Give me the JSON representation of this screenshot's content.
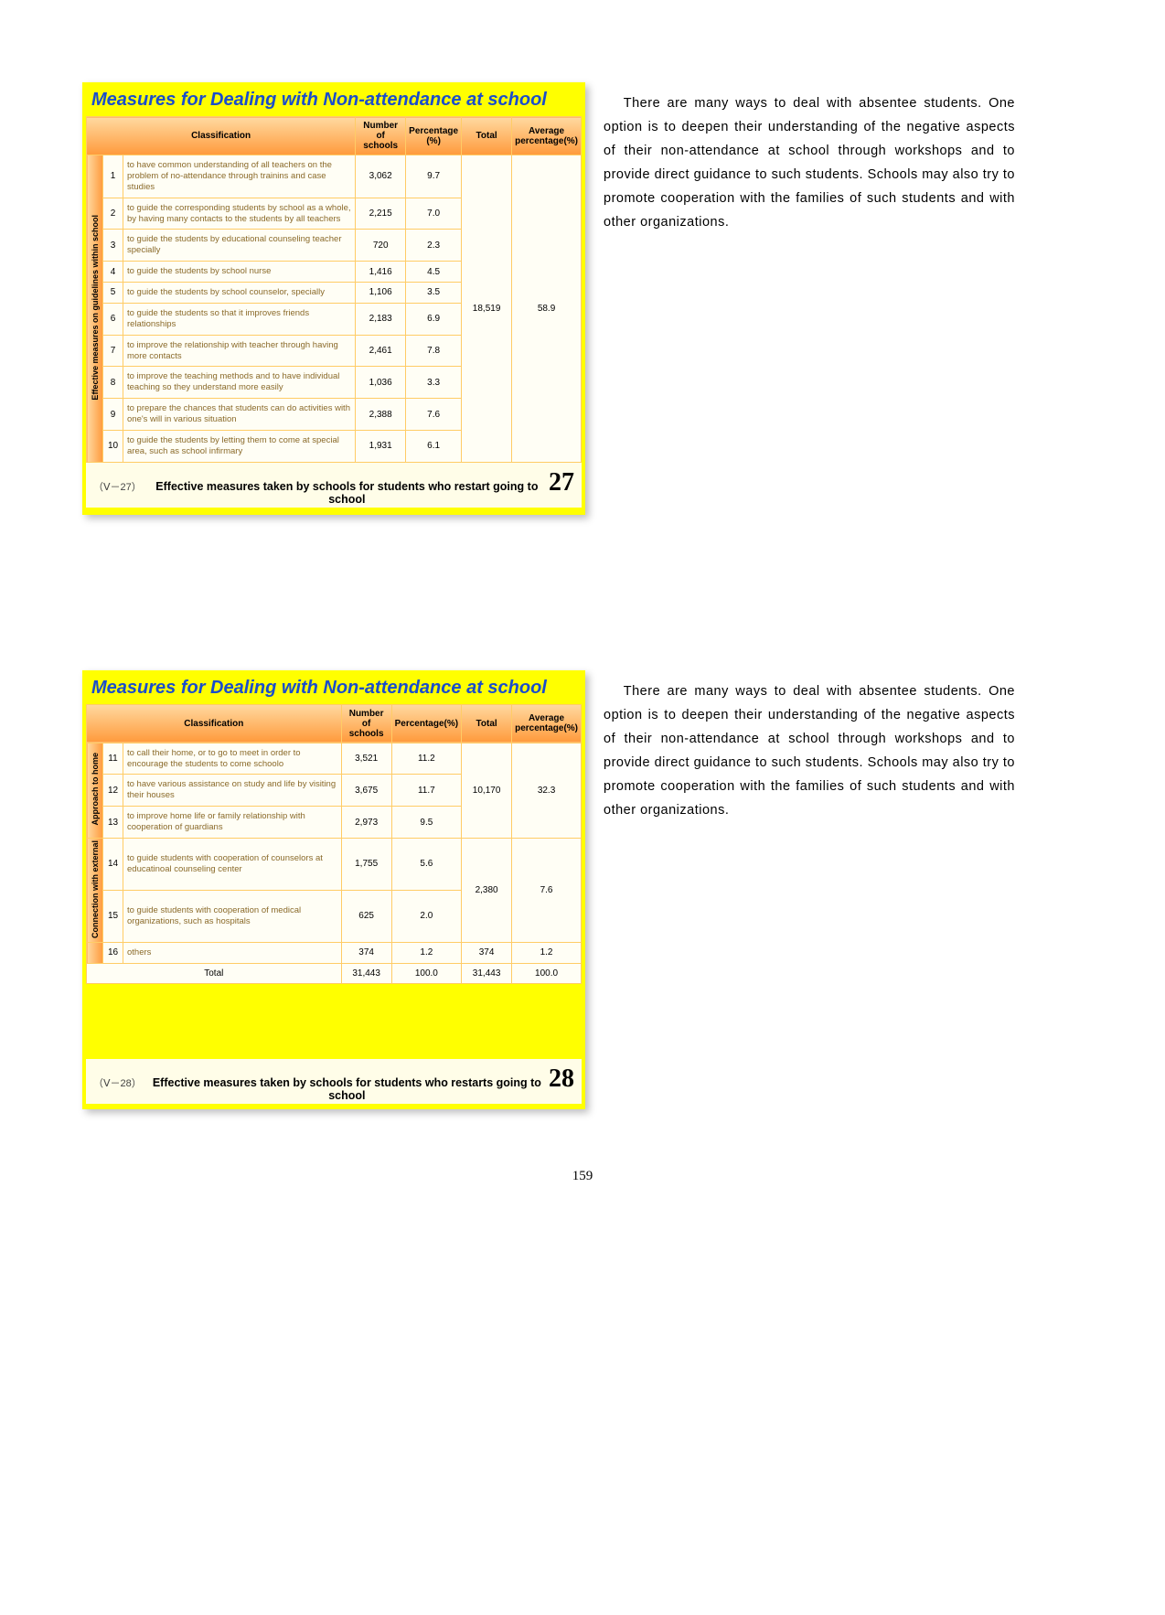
{
  "page_number": "159",
  "card1": {
    "title": "Measures for Dealing with Non-attendance at school",
    "headers": {
      "classification": "Classification",
      "num_schools": "Number of schools",
      "percentage": "Percentage (%)",
      "total": "Total",
      "avg_pct": "Average percentage(%)"
    },
    "group_label": "Effective measures on guidelines within school",
    "rows": [
      {
        "n": "1",
        "desc": "to have common understanding of all teachers on the problem of no-attendance through trainins and case studies",
        "schools": "3,062",
        "pct": "9.7"
      },
      {
        "n": "2",
        "desc": "to guide the corresponding students by school as a whole, by having many contacts to the students by all teachers",
        "schools": "2,215",
        "pct": "7.0"
      },
      {
        "n": "3",
        "desc": "to guide the students by educational counseling teacher specially",
        "schools": "720",
        "pct": "2.3"
      },
      {
        "n": "4",
        "desc": "to guide the students by school nurse",
        "schools": "1,416",
        "pct": "4.5"
      },
      {
        "n": "5",
        "desc": "to guide the students by school counselor, specially",
        "schools": "1,106",
        "pct": "3.5"
      },
      {
        "n": "6",
        "desc": "to guide the students so that it improves friends relationships",
        "schools": "2,183",
        "pct": "6.9"
      },
      {
        "n": "7",
        "desc": "to improve the relationship with teacher through having more contacts",
        "schools": "2,461",
        "pct": "7.8"
      },
      {
        "n": "8",
        "desc": "to improve the teaching methods and to have individual teaching so they understand more easily",
        "schools": "1,036",
        "pct": "3.3"
      },
      {
        "n": "9",
        "desc": "to prepare the chances that students can do activities with one's will in various situation",
        "schools": "2,388",
        "pct": "7.6"
      },
      {
        "n": "10",
        "desc": "to guide the students by letting them to come at special area, such as school infirmary",
        "schools": "1,931",
        "pct": "6.1"
      }
    ],
    "group_total": "18,519",
    "group_avg": "58.9",
    "footer_code": "（Ⅴ－27）",
    "footer_text": "Effective measures taken by schools for students who restart going to school",
    "footer_num": "27"
  },
  "side1": "There are many ways to deal with absentee students.  One option is to deepen their understanding of the negative aspects of their non-attendance at school through workshops and to provide direct guidance to such students. Schools may also try to promote cooperation with the  families of such students and with  other organizations.",
  "card2": {
    "title": "Measures for Dealing with Non-attendance at school",
    "headers": {
      "classification": "Classification",
      "num_schools": "Number of schools",
      "percentage": "Percentage(%)",
      "total": "Total",
      "avg_pct": "Average percentage(%)"
    },
    "groupA_label": "Approach to home",
    "groupA_rows": [
      {
        "n": "11",
        "desc": "to call their home, or to go to meet in order to encourage the students to come schoolo",
        "schools": "3,521",
        "pct": "11.2"
      },
      {
        "n": "12",
        "desc": "to have various assistance on study and life by visiting their houses",
        "schools": "3,675",
        "pct": "11.7"
      },
      {
        "n": "13",
        "desc": "to improve home life or family relationship with cooperation of guardians",
        "schools": "2,973",
        "pct": "9.5"
      }
    ],
    "groupA_total": "10,170",
    "groupA_avg": "32.3",
    "groupB_label": "Connection with external",
    "groupB_rows": [
      {
        "n": "14",
        "desc": "to guide students with cooperation of counselors at educatinoal counseling center",
        "schools": "1,755",
        "pct": "5.6"
      },
      {
        "n": "15",
        "desc": "to guide students with cooperation of medical organizations, such as hospitals",
        "schools": "625",
        "pct": "2.0"
      }
    ],
    "groupB_total": "2,380",
    "groupB_avg": "7.6",
    "others": {
      "n": "16",
      "desc": "others",
      "schools": "374",
      "pct": "1.2",
      "total": "374",
      "avg": "1.2"
    },
    "total_row": {
      "label": "Total",
      "schools": "31,443",
      "pct": "100.0",
      "total": "31,443",
      "avg": "100.0"
    },
    "footer_code": "（Ⅴ－28）",
    "footer_text": "Effective measures taken by schools for students who restarts going to school",
    "footer_num": "28"
  },
  "side2": "There are many ways to deal with absentee students.  One option is to deepen their understanding of the negative aspects of their non-attendance at school through workshops and to provide direct guidance to such students. Schools may also try to promote cooperation with the  families of such students and with  other organizations."
}
